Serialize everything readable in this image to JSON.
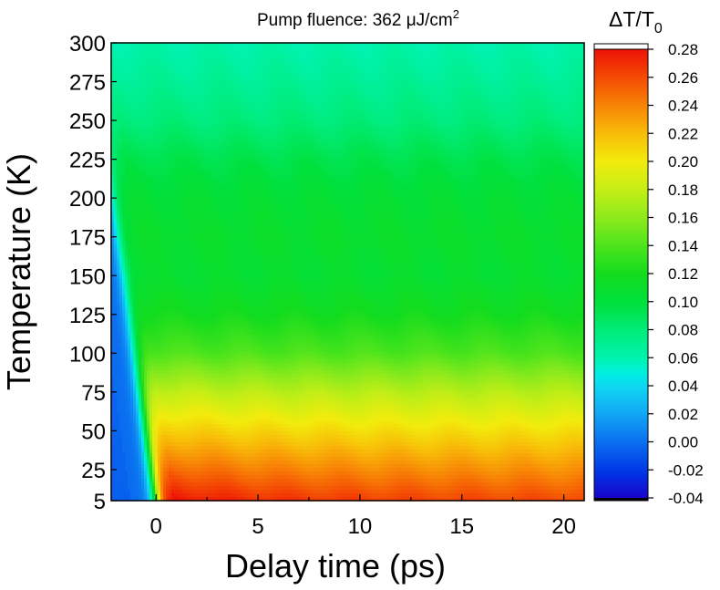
{
  "chart_data": {
    "type": "heatmap",
    "title": "Pump fluence: 362 μJ/cm²",
    "title_parts": {
      "prefix": "Pump fluence: 362 ",
      "unit_mu": "μ",
      "unit_rest": "J/cm",
      "superscript": "2"
    },
    "xlabel": "Delay time (ps)",
    "ylabel": "Temperature (K)",
    "xlim": [
      -2.2,
      21
    ],
    "ylim": [
      5,
      300
    ],
    "x_ticks": [
      0,
      5,
      10,
      15,
      20
    ],
    "y_ticks": [
      5,
      25,
      50,
      75,
      100,
      125,
      150,
      175,
      200,
      225,
      250,
      275,
      300
    ],
    "colorbar": {
      "label_main": "ΔT/T",
      "label_sub": "0",
      "range": [
        -0.04,
        0.28
      ],
      "ticks": [
        "0.28",
        "0.26",
        "0.24",
        "0.22",
        "0.20",
        "0.18",
        "0.16",
        "0.14",
        "0.12",
        "0.10",
        "0.08",
        "0.06",
        "0.04",
        "0.02",
        "0.00",
        "-0.02",
        "-0.04"
      ],
      "colormap": [
        [
          -0.04,
          "#1a00c8"
        ],
        [
          -0.02,
          "#0036e6"
        ],
        [
          0.0,
          "#0a6cf0"
        ],
        [
          0.02,
          "#12a4f4"
        ],
        [
          0.04,
          "#0fd6f2"
        ],
        [
          0.05,
          "#00f0e0"
        ],
        [
          0.06,
          "#00f3b0"
        ],
        [
          0.08,
          "#00ec7a"
        ],
        [
          0.1,
          "#00e03c"
        ],
        [
          0.12,
          "#12dc1e"
        ],
        [
          0.14,
          "#4ce41c"
        ],
        [
          0.16,
          "#8cea1c"
        ],
        [
          0.18,
          "#c4ee16"
        ],
        [
          0.2,
          "#f2ec0c"
        ],
        [
          0.22,
          "#f8bc08"
        ],
        [
          0.24,
          "#f88406"
        ],
        [
          0.26,
          "#f44a04"
        ],
        [
          0.28,
          "#ee1206"
        ]
      ]
    },
    "description_points": {
      "pre_zero_signal": 0.0,
      "rise_time_ps": 0.8,
      "plateau_values_by_temperature": [
        [
          5,
          0.26
        ],
        [
          25,
          0.235
        ],
        [
          50,
          0.205
        ],
        [
          75,
          0.175
        ],
        [
          100,
          0.14
        ],
        [
          125,
          0.12
        ],
        [
          150,
          0.107
        ],
        [
          175,
          0.11
        ],
        [
          200,
          0.105
        ],
        [
          225,
          0.095
        ],
        [
          250,
          0.08
        ],
        [
          275,
          0.07
        ],
        [
          300,
          0.062
        ]
      ]
    }
  }
}
